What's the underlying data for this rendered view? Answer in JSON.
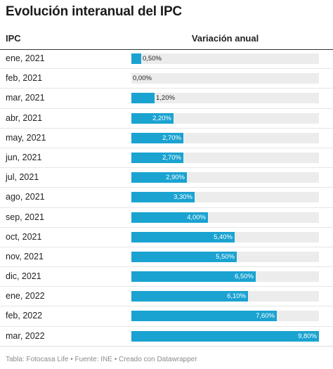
{
  "title": "Evolución interanual del IPC",
  "header": {
    "label_col": "IPC",
    "value_col": "Variación anual"
  },
  "chart_data": {
    "type": "bar",
    "orientation": "horizontal",
    "categories": [
      "ene, 2021",
      "feb, 2021",
      "mar, 2021",
      "abr, 2021",
      "may, 2021",
      "jun, 2021",
      "jul, 2021",
      "ago, 2021",
      "sep, 2021",
      "oct, 2021",
      "nov, 2021",
      "dic, 2021",
      "ene, 2022",
      "feb, 2022",
      "mar, 2022"
    ],
    "values": [
      0.5,
      0.0,
      1.2,
      2.2,
      2.7,
      2.7,
      2.9,
      3.3,
      4.0,
      5.4,
      5.5,
      6.5,
      6.1,
      7.6,
      9.8
    ],
    "value_labels": [
      "0,50%",
      "0,00%",
      "1,20%",
      "2,20%",
      "2,70%",
      "2,70%",
      "2,90%",
      "3,30%",
      "4,00%",
      "5,40%",
      "5,50%",
      "6,50%",
      "6,10%",
      "7,60%",
      "9,80%"
    ],
    "xlim": [
      0,
      9.8
    ],
    "bar_color": "#1aa3d1",
    "track_color": "#ececec"
  },
  "footer": "Tabla: Fotocasa Life • Fuente: INE • Creado con Datawrapper"
}
